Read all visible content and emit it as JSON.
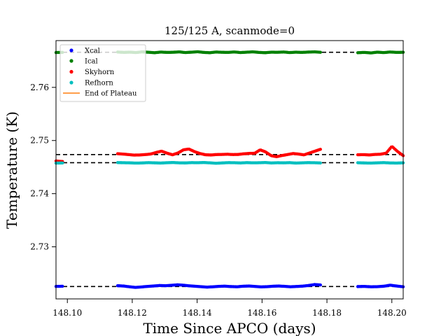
{
  "chart_data": {
    "type": "scatter",
    "title": "125/125 A, scanmode=0",
    "xlabel": "Time Since APCO (days)",
    "ylabel": "Temperature (K)",
    "xlim": [
      148.0965,
      148.2035
    ],
    "ylim": [
      2.7202,
      2.7688
    ],
    "xticks": [
      148.1,
      148.12,
      148.14,
      148.16,
      148.18,
      148.2
    ],
    "xtick_labels": [
      "148.10",
      "148.12",
      "148.14",
      "148.16",
      "148.18",
      "148.20"
    ],
    "yticks": [
      2.73,
      2.74,
      2.75,
      2.76
    ],
    "ytick_labels": [
      "2.73",
      "2.74",
      "2.75",
      "2.76"
    ],
    "grid": false,
    "legend_position": "upper-left",
    "plateau_levels": [
      2.7666,
      2.74735,
      2.74582,
      2.72253
    ],
    "series": [
      {
        "name": "Xcal",
        "color": "#0000ff",
        "segments": [
          {
            "start": 148.0965,
            "end": 148.0985,
            "values": [
              2.72255,
              2.72258
            ]
          },
          {
            "start": 148.1155,
            "end": 148.178,
            "values": [
              2.72268,
              2.72262,
              2.72248,
              2.72236,
              2.72245,
              2.72255,
              2.72262,
              2.72272,
              2.72268,
              2.72276,
              2.72285,
              2.72278,
              2.72266,
              2.72258,
              2.7225,
              2.72242,
              2.72248,
              2.72256,
              2.7226,
              2.72252,
              2.72248,
              2.72258,
              2.72262,
              2.72255,
              2.72246,
              2.7225,
              2.72258,
              2.72262,
              2.72256,
              2.72248,
              2.72254,
              2.7226,
              2.72272,
              2.7229,
              2.72282
            ]
          },
          {
            "start": 148.1895,
            "end": 148.2035,
            "values": [
              2.72252,
              2.72255,
              2.72248,
              2.7225,
              2.72258,
              2.72278,
              2.72262,
              2.72248
            ]
          }
        ]
      },
      {
        "name": "Ical",
        "color": "#008000",
        "segments": [
          {
            "start": 148.0965,
            "end": 148.0985,
            "values": [
              2.76656,
              2.76658
            ]
          },
          {
            "start": 148.1155,
            "end": 148.178,
            "values": [
              2.76665,
              2.76658,
              2.76662,
              2.76655,
              2.76668,
              2.7666,
              2.76652,
              2.76664,
              2.76658,
              2.7666,
              2.76668,
              2.76655,
              2.76662,
              2.7667,
              2.76658,
              2.76652,
              2.76665,
              2.7666,
              2.76658,
              2.76666,
              2.76655,
              2.76662,
              2.76668,
              2.76658,
              2.76652,
              2.76662,
              2.7666,
              2.76665,
              2.76655,
              2.76662,
              2.76658,
              2.76664,
              2.76668,
              2.7666
            ]
          },
          {
            "start": 148.1895,
            "end": 148.2035,
            "values": [
              2.76652,
              2.76658,
              2.76648,
              2.76662,
              2.76655,
              2.76665,
              2.76658,
              2.7666
            ]
          }
        ]
      },
      {
        "name": "Skyhorn",
        "color": "#ff0000",
        "segments": [
          {
            "start": 148.0965,
            "end": 148.0985,
            "values": [
              2.74615,
              2.74605
            ]
          },
          {
            "start": 148.1155,
            "end": 148.178,
            "values": [
              2.74752,
              2.74745,
              2.74735,
              2.74726,
              2.74728,
              2.74735,
              2.74745,
              2.74775,
              2.748,
              2.74762,
              2.74732,
              2.74765,
              2.74825,
              2.7484,
              2.74792,
              2.74756,
              2.74732,
              2.74728,
              2.74736,
              2.74738,
              2.74742,
              2.74736,
              2.74738,
              2.7475,
              2.74758,
              2.7476,
              2.74825,
              2.74785,
              2.74715,
              2.74695,
              2.74718,
              2.74736,
              2.74755,
              2.74745,
              2.7473,
              2.74765,
              2.748,
              2.74835
            ]
          },
          {
            "start": 148.1895,
            "end": 148.2035,
            "values": [
              2.74732,
              2.74735,
              2.74728,
              2.74738,
              2.74742,
              2.74762,
              2.7489,
              2.74795,
              2.74715
            ]
          }
        ]
      },
      {
        "name": "Refhorn",
        "color": "#00bfbf",
        "segments": [
          {
            "start": 148.0965,
            "end": 148.0985,
            "values": [
              2.74575,
              2.74578
            ]
          },
          {
            "start": 148.1155,
            "end": 148.178,
            "values": [
              2.74585,
              2.74582,
              2.7458,
              2.74575,
              2.74578,
              2.74584,
              2.7458,
              2.74576,
              2.74582,
              2.74586,
              2.7458,
              2.74578,
              2.74584,
              2.74582,
              2.74586,
              2.7458,
              2.74572,
              2.74578,
              2.74584,
              2.74582,
              2.74578,
              2.74584,
              2.7458,
              2.74582,
              2.74586,
              2.74578,
              2.74582,
              2.7458,
              2.74584,
              2.74576,
              2.7458,
              2.74584,
              2.74582,
              2.74578
            ]
          },
          {
            "start": 148.1895,
            "end": 148.2035,
            "values": [
              2.74582,
              2.74578,
              2.74575,
              2.7458,
              2.74584,
              2.74578,
              2.74576,
              2.7458
            ]
          }
        ]
      }
    ],
    "end_of_plateau": {
      "name": "End of Plateau",
      "color": "#ff7f0e"
    }
  }
}
